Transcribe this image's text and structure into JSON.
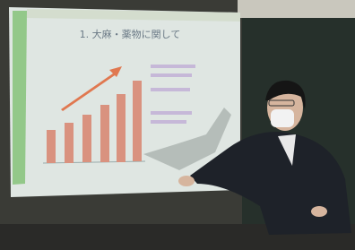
{
  "slide": {
    "title": "1. 大麻・薬物に関して"
  }
}
